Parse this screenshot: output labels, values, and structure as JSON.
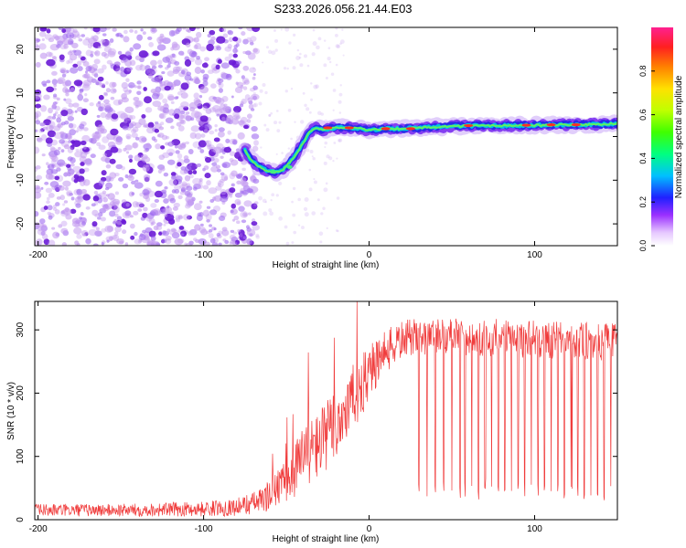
{
  "title": "S233.2026.056.21.44.E03",
  "colors": {
    "snr_line": "#f03c3c",
    "scatter_base": "#c39af0",
    "scatter_dark": "#6a1bd6",
    "axis": "#000000"
  },
  "chart_data": [
    {
      "type": "heatmap",
      "name": "spectrogram",
      "title": "S233.2026.056.21.44.E03",
      "xlabel": "Height of straight line (km)",
      "ylabel": "Frequency (Hz)",
      "xlim": [
        -202,
        150
      ],
      "ylim": [
        -25,
        25
      ],
      "x_ticks": [
        -200,
        -100,
        0,
        100
      ],
      "y_ticks": [
        -20,
        -10,
        0,
        10,
        20
      ],
      "noise_region_x": [
        -202,
        -68
      ],
      "signal_track": {
        "x": [
          -75,
          -72,
          -68,
          -64,
          -60,
          -56,
          -52,
          -48,
          -44,
          -40,
          -36,
          -32,
          -28,
          -24,
          -20,
          -10,
          0,
          10,
          20,
          40,
          60,
          80,
          100,
          120,
          140,
          150
        ],
        "y": [
          -3,
          -5,
          -6.5,
          -7.5,
          -8,
          -8.2,
          -7.5,
          -6,
          -4,
          -1.5,
          1,
          2,
          1.5,
          1.8,
          2,
          2,
          1.5,
          1.8,
          1.8,
          2.2,
          2.5,
          2.5,
          2.6,
          2.7,
          2.8,
          3
        ]
      },
      "colorbar": {
        "label": "Normalized spectral amplitude",
        "range": [
          0,
          1
        ],
        "ticks": [
          "0.0",
          "0.2",
          "0.4",
          "0.6",
          "0.8"
        ]
      }
    },
    {
      "type": "line",
      "name": "snr",
      "xlabel": "Height of straight line (km)",
      "ylabel": "SNR (10 * v/v)",
      "xlim": [
        -202,
        150
      ],
      "ylim": [
        0,
        345
      ],
      "x_ticks": [
        -200,
        -100,
        0,
        100
      ],
      "y_ticks": [
        0,
        100,
        200,
        300
      ],
      "series": [
        {
          "name": "SNR",
          "envelope_x": [
            -202,
            -150,
            -100,
            -80,
            -65,
            -60,
            -50,
            -45,
            -40,
            -30,
            -20,
            -10,
            0,
            10,
            20,
            30,
            50,
            100,
            150
          ],
          "envelope_mean": [
            15,
            15,
            17,
            20,
            30,
            40,
            60,
            80,
            100,
            120,
            150,
            190,
            230,
            265,
            285,
            290,
            290,
            285,
            280
          ],
          "envelope_spread": [
            10,
            10,
            12,
            14,
            20,
            25,
            35,
            45,
            50,
            55,
            60,
            55,
            45,
            35,
            30,
            30,
            30,
            30,
            30
          ],
          "dropouts_x": [
            30,
            35,
            40,
            45,
            50,
            55,
            58,
            62,
            66,
            70,
            74,
            78,
            82,
            86,
            90,
            94,
            98,
            102,
            106,
            110,
            114,
            118,
            122,
            126,
            130,
            134,
            138,
            142,
            146
          ],
          "dropout_min": 30
        }
      ]
    }
  ]
}
